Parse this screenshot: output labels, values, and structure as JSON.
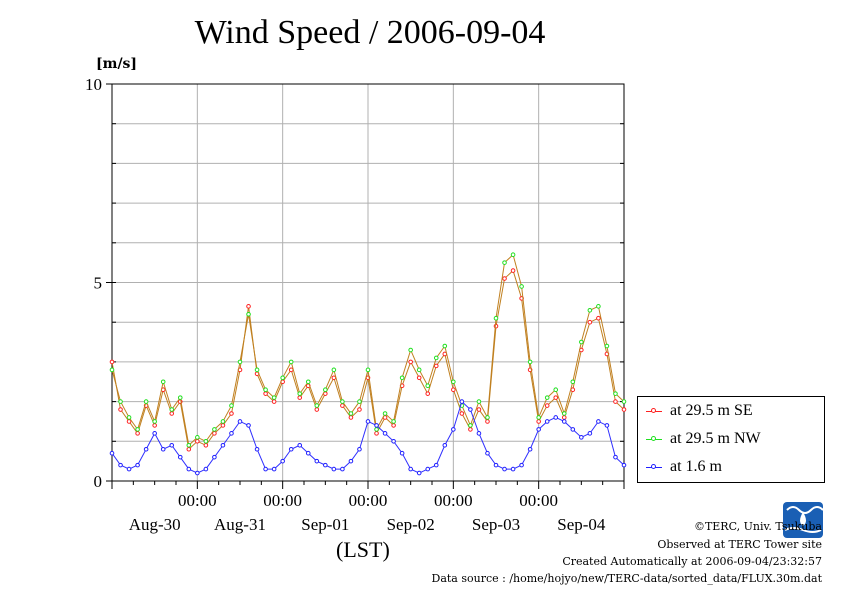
{
  "page": {
    "title": "Wind Speed / 2006-09-04",
    "unit": "[m/s]",
    "xlabel": "(LST)"
  },
  "legend": {
    "items": [
      {
        "label": "at 29.5 m SE",
        "color": "#ff2020"
      },
      {
        "label": "at 29.5 m NW",
        "color": "#20e020"
      },
      {
        "label": "at 1.6 m",
        "color": "#2020ff"
      }
    ]
  },
  "footer": {
    "copyright": "©TERC, Univ. Tsukuba",
    "observed": "Observed at TERC Tower site",
    "created": "Created Automatically at 2006-09-04/23:32:57",
    "source": "Data source : /home/hojyo/new/TERC-data/sorted_data/FLUX.30m.dat",
    "logo_text": "TERC"
  },
  "chart_data": {
    "type": "line",
    "title": "Wind Speed / 2006-09-04",
    "ylabel": "[m/s]",
    "xlabel": "(LST)",
    "ylim": [
      0,
      10
    ],
    "yticks": [
      "0",
      "5",
      "10"
    ],
    "xlim": [
      0,
      6
    ],
    "time_ticks": [
      "00:00",
      "00:00",
      "00:00",
      "00:00",
      "00:00"
    ],
    "time_tick_positions": [
      1,
      2,
      3,
      4,
      5
    ],
    "date_labels": [
      "Aug-30",
      "Aug-31",
      "Sep-01",
      "Sep-02",
      "Sep-03",
      "Sep-04"
    ],
    "date_label_positions": [
      0.5,
      1.5,
      2.5,
      3.5,
      4.5,
      5.5
    ],
    "grid": true,
    "legend_position": "right",
    "series": [
      {
        "name": "at 29.5 m SE",
        "color": "#ff2020",
        "x": [
          0,
          0.1,
          0.2,
          0.3,
          0.4,
          0.5,
          0.6,
          0.7,
          0.8,
          0.9,
          1.0,
          1.1,
          1.2,
          1.3,
          1.4,
          1.5,
          1.6,
          1.7,
          1.8,
          1.9,
          2.0,
          2.1,
          2.2,
          2.3,
          2.4,
          2.5,
          2.6,
          2.7,
          2.8,
          2.9,
          3.0,
          3.1,
          3.2,
          3.3,
          3.4,
          3.5,
          3.6,
          3.7,
          3.8,
          3.9,
          4.0,
          4.1,
          4.2,
          4.3,
          4.4,
          4.5,
          4.6,
          4.7,
          4.8,
          4.9,
          5.0,
          5.1,
          5.2,
          5.3,
          5.4,
          5.5,
          5.6,
          5.7,
          5.8,
          5.9,
          6.0
        ],
        "y": [
          3.0,
          1.8,
          1.5,
          1.2,
          1.9,
          1.4,
          2.3,
          1.7,
          2.0,
          0.8,
          1.0,
          0.9,
          1.2,
          1.4,
          1.7,
          2.8,
          4.4,
          2.7,
          2.2,
          2.0,
          2.5,
          2.8,
          2.1,
          2.4,
          1.8,
          2.2,
          2.6,
          1.9,
          1.6,
          1.8,
          2.6,
          1.2,
          1.6,
          1.4,
          2.4,
          3.0,
          2.6,
          2.2,
          2.9,
          3.2,
          2.3,
          1.7,
          1.3,
          1.8,
          1.5,
          3.9,
          5.1,
          5.3,
          4.6,
          2.8,
          1.5,
          1.9,
          2.1,
          1.6,
          2.3,
          3.3,
          4.0,
          4.1,
          3.2,
          2.0,
          1.8
        ]
      },
      {
        "name": "at 29.5 m NW",
        "color": "#20e020",
        "x": [
          0,
          0.1,
          0.2,
          0.3,
          0.4,
          0.5,
          0.6,
          0.7,
          0.8,
          0.9,
          1.0,
          1.1,
          1.2,
          1.3,
          1.4,
          1.5,
          1.6,
          1.7,
          1.8,
          1.9,
          2.0,
          2.1,
          2.2,
          2.3,
          2.4,
          2.5,
          2.6,
          2.7,
          2.8,
          2.9,
          3.0,
          3.1,
          3.2,
          3.3,
          3.4,
          3.5,
          3.6,
          3.7,
          3.8,
          3.9,
          4.0,
          4.1,
          4.2,
          4.3,
          4.4,
          4.5,
          4.6,
          4.7,
          4.8,
          4.9,
          5.0,
          5.1,
          5.2,
          5.3,
          5.4,
          5.5,
          5.6,
          5.7,
          5.8,
          5.9,
          6.0
        ],
        "y": [
          2.8,
          2.0,
          1.6,
          1.3,
          2.0,
          1.5,
          2.5,
          1.8,
          2.1,
          0.9,
          1.1,
          1.0,
          1.3,
          1.5,
          1.9,
          3.0,
          4.2,
          2.8,
          2.3,
          2.1,
          2.6,
          3.0,
          2.2,
          2.5,
          1.9,
          2.3,
          2.8,
          2.0,
          1.7,
          2.0,
          2.8,
          1.3,
          1.7,
          1.5,
          2.6,
          3.3,
          2.8,
          2.4,
          3.1,
          3.4,
          2.5,
          1.9,
          1.4,
          2.0,
          1.6,
          4.1,
          5.5,
          5.7,
          4.9,
          3.0,
          1.6,
          2.1,
          2.3,
          1.7,
          2.5,
          3.5,
          4.3,
          4.4,
          3.4,
          2.2,
          2.0
        ]
      },
      {
        "name": "at 1.6 m",
        "color": "#2020ff",
        "x": [
          0,
          0.1,
          0.2,
          0.3,
          0.4,
          0.5,
          0.6,
          0.7,
          0.8,
          0.9,
          1.0,
          1.1,
          1.2,
          1.3,
          1.4,
          1.5,
          1.6,
          1.7,
          1.8,
          1.9,
          2.0,
          2.1,
          2.2,
          2.3,
          2.4,
          2.5,
          2.6,
          2.7,
          2.8,
          2.9,
          3.0,
          3.1,
          3.2,
          3.3,
          3.4,
          3.5,
          3.6,
          3.7,
          3.8,
          3.9,
          4.0,
          4.1,
          4.2,
          4.3,
          4.4,
          4.5,
          4.6,
          4.7,
          4.8,
          4.9,
          5.0,
          5.1,
          5.2,
          5.3,
          5.4,
          5.5,
          5.6,
          5.7,
          5.8,
          5.9,
          6.0
        ],
        "y": [
          0.7,
          0.4,
          0.3,
          0.4,
          0.8,
          1.2,
          0.8,
          0.9,
          0.6,
          0.3,
          0.2,
          0.3,
          0.6,
          0.9,
          1.2,
          1.5,
          1.4,
          0.8,
          0.3,
          0.3,
          0.5,
          0.8,
          0.9,
          0.7,
          0.5,
          0.4,
          0.3,
          0.3,
          0.5,
          0.8,
          1.5,
          1.4,
          1.2,
          1.0,
          0.7,
          0.3,
          0.2,
          0.3,
          0.4,
          0.9,
          1.3,
          2.0,
          1.8,
          1.2,
          0.7,
          0.4,
          0.3,
          0.3,
          0.4,
          0.8,
          1.3,
          1.5,
          1.6,
          1.5,
          1.3,
          1.1,
          1.2,
          1.5,
          1.4,
          0.6,
          0.4
        ]
      }
    ]
  }
}
